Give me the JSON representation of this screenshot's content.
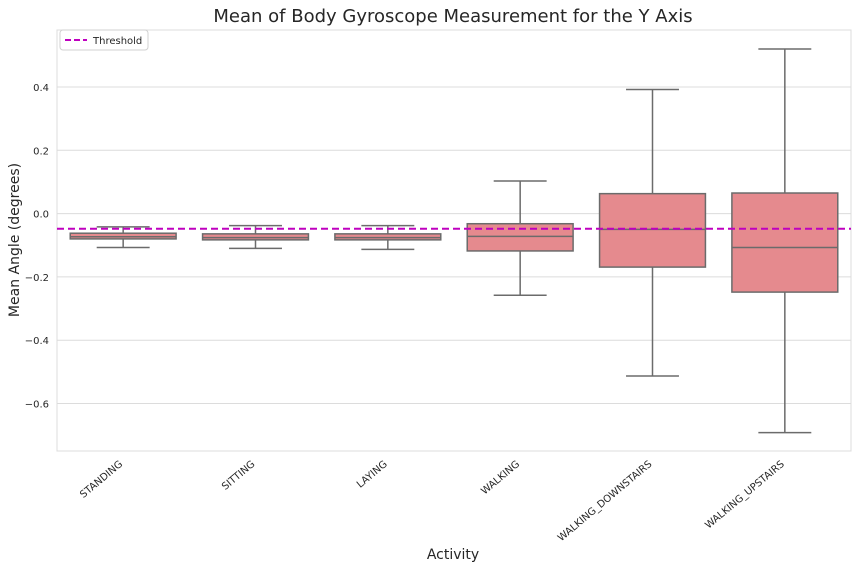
{
  "chart_data": {
    "type": "box",
    "title": "Mean of Body Gyroscope Measurement for the Y Axis",
    "xlabel": "Activity",
    "ylabel": "Mean Angle (degrees)",
    "ylim": [
      -0.75,
      0.58
    ],
    "yticks": [
      "0.4",
      "0.2",
      "0.0",
      "−0.2",
      "−0.4",
      "−0.6"
    ],
    "ytick_values": [
      0.4,
      0.2,
      0.0,
      -0.2,
      -0.4,
      -0.6
    ],
    "categories": [
      "STANDING",
      "SITTING",
      "LAYING",
      "WALKING",
      "WALKING_DOWNSTAIRS",
      "WALKING_UPSTAIRS"
    ],
    "boxes": [
      {
        "category": "STANDING",
        "whisker_low": -0.107,
        "q1": -0.08,
        "median": -0.073,
        "q3": -0.062,
        "whisker_high": -0.042
      },
      {
        "category": "SITTING",
        "whisker_low": -0.11,
        "q1": -0.083,
        "median": -0.076,
        "q3": -0.064,
        "whisker_high": -0.038
      },
      {
        "category": "LAYING",
        "whisker_low": -0.113,
        "q1": -0.083,
        "median": -0.076,
        "q3": -0.064,
        "whisker_high": -0.038
      },
      {
        "category": "WALKING",
        "whisker_low": -0.258,
        "q1": -0.118,
        "median": -0.072,
        "q3": -0.032,
        "whisker_high": 0.103
      },
      {
        "category": "WALKING_DOWNSTAIRS",
        "whisker_low": -0.513,
        "q1": -0.169,
        "median": -0.05,
        "q3": 0.063,
        "whisker_high": 0.392
      },
      {
        "category": "WALKING_UPSTAIRS",
        "whisker_low": -0.692,
        "q1": -0.248,
        "median": -0.107,
        "q3": 0.065,
        "whisker_high": 0.52
      }
    ],
    "threshold": {
      "label": "Threshold",
      "value": -0.048,
      "color": "#bf00bf"
    },
    "box_color": "#e58a8e",
    "line_color": "#6b6b6b",
    "grid": true,
    "legend_position": "top-left"
  }
}
